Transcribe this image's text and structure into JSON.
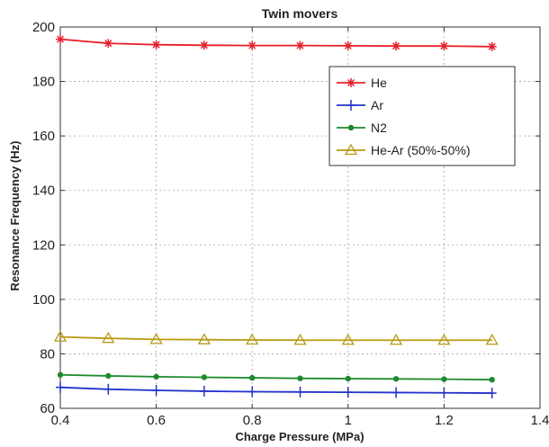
{
  "chart_data": {
    "type": "line",
    "title": "Twin movers",
    "xlabel": "Charge Pressure (MPa)",
    "ylabel": "Resonance Frequency (Hz)",
    "xlim": [
      0.4,
      1.4
    ],
    "ylim": [
      60,
      200
    ],
    "xticks": [
      "0.4",
      "0.6",
      "0.8",
      "1",
      "1.2",
      "1.4"
    ],
    "yticks": [
      "60",
      "80",
      "100",
      "120",
      "140",
      "160",
      "180",
      "200"
    ],
    "grid": true,
    "legend_position": "upper-right",
    "x": [
      0.4,
      0.5,
      0.6,
      0.7,
      0.8,
      0.9,
      1.0,
      1.1,
      1.2,
      1.3
    ],
    "series": [
      {
        "name": "He",
        "color": "#e8202a",
        "marker": "asterisk",
        "values": [
          195.5,
          194.0,
          193.5,
          193.3,
          193.2,
          193.2,
          193.1,
          193.0,
          193.0,
          192.8
        ]
      },
      {
        "name": "Ar",
        "color": "#2233cc",
        "marker": "plus",
        "values": [
          67.7,
          67.0,
          66.6,
          66.3,
          66.1,
          66.0,
          65.9,
          65.8,
          65.7,
          65.6
        ]
      },
      {
        "name": "N2",
        "color": "#1e8a2e",
        "marker": "dot",
        "values": [
          72.3,
          71.9,
          71.6,
          71.4,
          71.2,
          71.0,
          70.9,
          70.8,
          70.7,
          70.5
        ]
      },
      {
        "name": "He-Ar (50%-50%)",
        "color": "#b99a10",
        "marker": "triangle",
        "values": [
          86.2,
          85.7,
          85.3,
          85.2,
          85.1,
          85.0,
          85.0,
          85.0,
          85.0,
          85.0
        ]
      }
    ]
  }
}
